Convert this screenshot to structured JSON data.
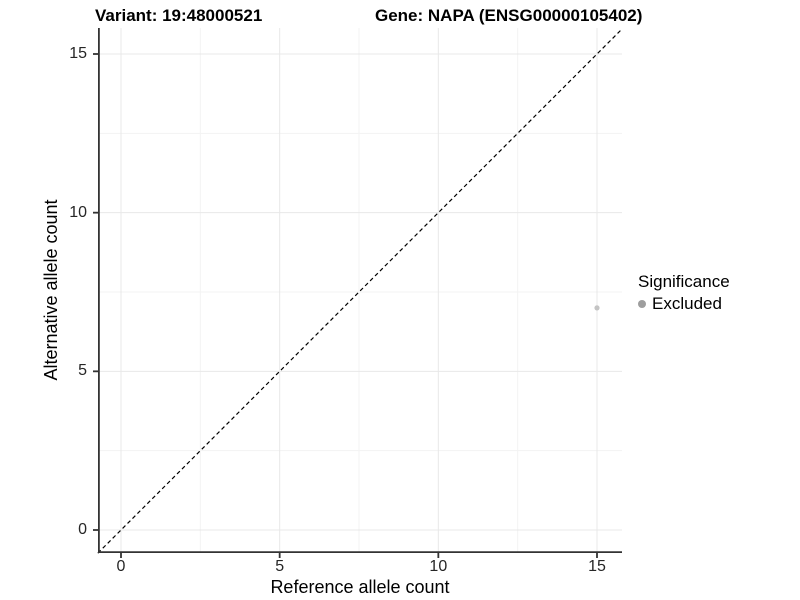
{
  "title": {
    "left": "Variant: 19:48000521",
    "right": "Gene: NAPA (ENSG00000105402)"
  },
  "chart_data": {
    "type": "scatter",
    "title": "Variant: 19:48000521   Gene: NAPA (ENSG00000105402)",
    "xlabel": "Reference allele count",
    "ylabel": "Alternative allele count",
    "xlim": [
      -0.73,
      15.8
    ],
    "ylim": [
      -0.73,
      15.8
    ],
    "x_ticks": [
      0,
      5,
      10,
      15
    ],
    "y_ticks": [
      0,
      5,
      10,
      15
    ],
    "minor_ticks": [
      2.5,
      7.5,
      12.5
    ],
    "grid": true,
    "points": [
      {
        "x": 15,
        "y": 7,
        "series": "Excluded"
      }
    ],
    "reference_line": {
      "type": "identity",
      "slope": 1,
      "intercept": 0,
      "style": "dashed"
    },
    "legend": {
      "title": "Significance",
      "position": "right",
      "items": [
        {
          "label": "Excluded",
          "color": "#9e9e9e"
        }
      ]
    }
  },
  "colors": {
    "point": "#c4c4c4",
    "legend_dot": "#9e9e9e",
    "axis_line": "#333333",
    "grid_major": "#e8e8e8",
    "grid_minor": "#f3f3f3",
    "dashed_line": "#000000",
    "tick_text": "#262626"
  }
}
